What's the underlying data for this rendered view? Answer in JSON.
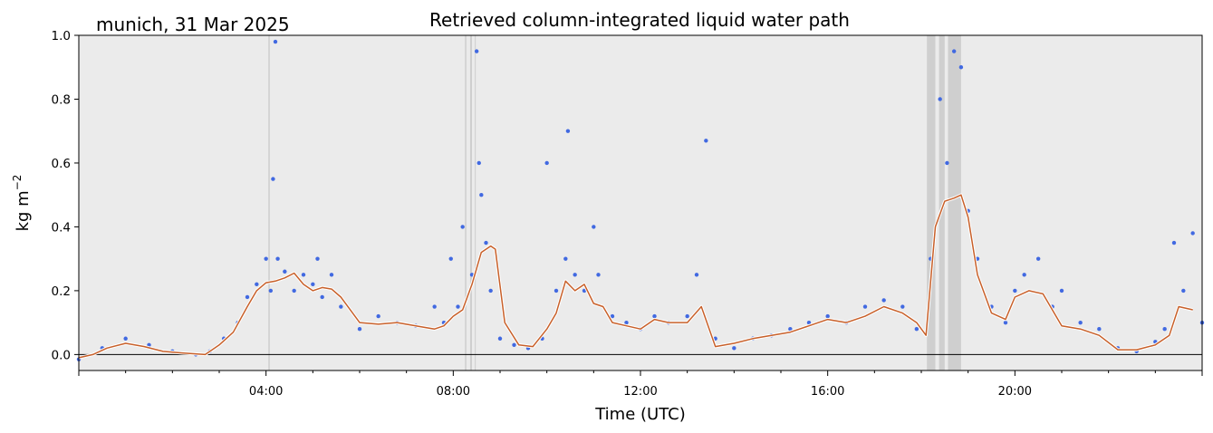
{
  "chart_data": {
    "type": "scatter",
    "title": "Retrieved column-integrated liquid water path",
    "subtitle": "munich, 31 Mar 2025",
    "xlabel": "Time (UTC)",
    "ylabel_base": "kg m",
    "ylabel_exp": "−2",
    "xlim": [
      0,
      24
    ],
    "ylim": [
      -0.05,
      1.0
    ],
    "x_ticks": [
      4,
      8,
      12,
      16,
      20
    ],
    "x_tick_labels": [
      "04:00",
      "08:00",
      "12:00",
      "16:00",
      "20:00"
    ],
    "y_ticks": [
      0.0,
      0.2,
      0.4,
      0.6,
      0.8,
      1.0
    ],
    "y_tick_labels": [
      "0.0",
      "0.2",
      "0.4",
      "0.6",
      "0.8",
      "1.0"
    ],
    "zero_line": 0.0,
    "grid": false,
    "colors": {
      "background": "#ebebeb",
      "scatter": "#4169e1",
      "smooth_outer": "#ffffff",
      "smooth_inner": "#c8602a",
      "flag": "#cfcfcf"
    },
    "flag_intervals": [
      [
        4.05,
        4.08
      ],
      [
        8.25,
        8.28
      ],
      [
        8.36,
        8.4
      ],
      [
        8.46,
        8.48
      ],
      [
        18.12,
        18.3
      ],
      [
        18.38,
        18.5
      ],
      [
        18.57,
        18.85
      ]
    ],
    "series": [
      {
        "name": "",
        "role": "smoothed",
        "x": [
          0.0,
          0.3,
          0.6,
          1.0,
          1.4,
          1.8,
          2.2,
          2.7,
          3.0,
          3.3,
          3.6,
          3.8,
          4.0,
          4.2,
          4.4,
          4.6,
          4.8,
          5.0,
          5.2,
          5.4,
          5.6,
          6.0,
          6.4,
          6.8,
          7.2,
          7.6,
          7.8,
          8.0,
          8.2,
          8.4,
          8.6,
          8.8,
          8.9,
          9.1,
          9.4,
          9.7,
          10.0,
          10.2,
          10.4,
          10.6,
          10.8,
          11.0,
          11.2,
          11.4,
          11.7,
          12.0,
          12.3,
          12.6,
          13.0,
          13.3,
          13.6,
          14.0,
          14.4,
          14.8,
          15.2,
          15.6,
          16.0,
          16.4,
          16.8,
          17.2,
          17.6,
          17.9,
          18.1,
          18.3,
          18.5,
          18.7,
          18.85,
          19.0,
          19.2,
          19.5,
          19.8,
          20.0,
          20.3,
          20.6,
          21.0,
          21.4,
          21.8,
          22.2,
          22.6,
          23.0,
          23.3,
          23.5,
          23.8
        ],
        "values": [
          -0.01,
          0.0,
          0.02,
          0.035,
          0.025,
          0.01,
          0.005,
          0.0,
          0.03,
          0.07,
          0.15,
          0.2,
          0.225,
          0.23,
          0.24,
          0.255,
          0.22,
          0.2,
          0.21,
          0.205,
          0.18,
          0.1,
          0.095,
          0.1,
          0.09,
          0.08,
          0.09,
          0.12,
          0.14,
          0.22,
          0.32,
          0.34,
          0.33,
          0.1,
          0.03,
          0.025,
          0.08,
          0.13,
          0.23,
          0.2,
          0.22,
          0.16,
          0.15,
          0.1,
          0.09,
          0.08,
          0.11,
          0.1,
          0.1,
          0.15,
          0.025,
          0.035,
          0.05,
          0.06,
          0.07,
          0.09,
          0.11,
          0.1,
          0.12,
          0.15,
          0.13,
          0.1,
          0.06,
          0.4,
          0.48,
          0.49,
          0.5,
          0.43,
          0.25,
          0.13,
          0.11,
          0.18,
          0.2,
          0.19,
          0.09,
          0.08,
          0.06,
          0.015,
          0.015,
          0.03,
          0.06,
          0.15,
          0.14
        ]
      },
      {
        "name": "",
        "role": "observations",
        "x": [
          0.0,
          0.5,
          1.0,
          1.5,
          2.0,
          2.5,
          2.8,
          3.1,
          3.4,
          3.6,
          3.8,
          4.0,
          4.1,
          4.15,
          4.2,
          4.25,
          4.4,
          4.6,
          4.8,
          5.0,
          5.1,
          5.2,
          5.4,
          5.6,
          6.0,
          6.4,
          6.8,
          7.2,
          7.6,
          7.8,
          7.95,
          8.1,
          8.2,
          8.4,
          8.5,
          8.55,
          8.6,
          8.7,
          8.8,
          9.0,
          9.3,
          9.6,
          9.9,
          10.0,
          10.2,
          10.4,
          10.45,
          10.6,
          10.8,
          11.0,
          11.1,
          11.4,
          11.7,
          12.0,
          12.3,
          12.6,
          13.0,
          13.2,
          13.4,
          13.6,
          14.0,
          14.4,
          14.8,
          15.2,
          15.6,
          16.0,
          16.4,
          16.8,
          17.2,
          17.6,
          17.9,
          18.2,
          18.4,
          18.55,
          18.7,
          18.85,
          19.0,
          19.2,
          19.5,
          19.8,
          20.0,
          20.2,
          20.5,
          20.8,
          21.0,
          21.4,
          21.8,
          22.2,
          22.6,
          23.0,
          23.2,
          23.4,
          23.6,
          23.8,
          24.0
        ],
        "values": [
          -0.015,
          0.02,
          0.05,
          0.03,
          0.01,
          0.0,
          0.01,
          0.05,
          0.1,
          0.18,
          0.22,
          0.3,
          0.2,
          0.55,
          0.98,
          0.3,
          0.26,
          0.2,
          0.25,
          0.22,
          0.3,
          0.18,
          0.25,
          0.15,
          0.08,
          0.12,
          0.1,
          0.09,
          0.15,
          0.1,
          0.3,
          0.15,
          0.4,
          0.25,
          0.95,
          0.6,
          0.5,
          0.35,
          0.2,
          0.05,
          0.03,
          0.02,
          0.05,
          0.6,
          0.2,
          0.3,
          0.7,
          0.25,
          0.2,
          0.4,
          0.25,
          0.12,
          0.1,
          0.08,
          0.12,
          0.1,
          0.12,
          0.25,
          0.67,
          0.05,
          0.02,
          0.05,
          0.06,
          0.08,
          0.1,
          0.12,
          0.1,
          0.15,
          0.17,
          0.15,
          0.08,
          0.3,
          0.8,
          0.6,
          0.95,
          0.9,
          0.45,
          0.3,
          0.15,
          0.1,
          0.2,
          0.25,
          0.3,
          0.15,
          0.2,
          0.1,
          0.08,
          0.02,
          0.01,
          0.04,
          0.08,
          0.35,
          0.2,
          0.38,
          0.1
        ]
      }
    ]
  }
}
